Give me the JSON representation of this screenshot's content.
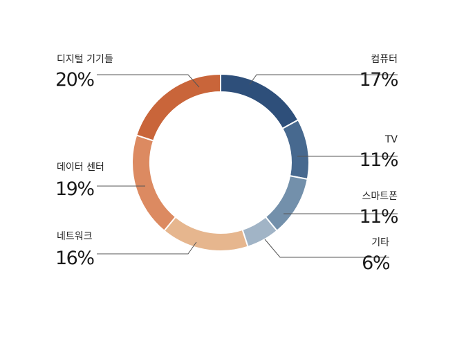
{
  "chart_data": {
    "type": "pie",
    "title": "",
    "categories": [
      "컴퓨터",
      "TV",
      "스마트폰",
      "기타",
      "네트워크",
      "데이터 센터",
      "디지털 기기들"
    ],
    "values": [
      17,
      11,
      11,
      6,
      16,
      19,
      20
    ],
    "value_labels": [
      "17%",
      "11%",
      "11%",
      "6%",
      "16%",
      "19%",
      "20%"
    ],
    "colors": [
      "#2e4f7a",
      "#47698f",
      "#7390ab",
      "#a1b4c6",
      "#e6b68e",
      "#dc8a61",
      "#c9653a"
    ],
    "legend": "none"
  }
}
